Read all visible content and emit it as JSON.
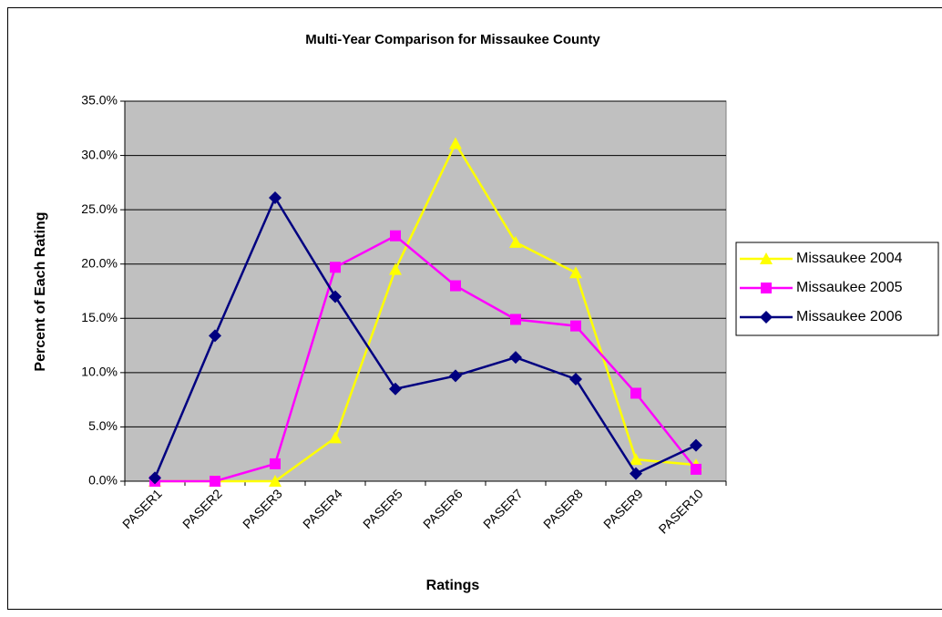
{
  "chart_data": {
    "type": "line",
    "title": "Multi-Year Comparison for Missaukee County",
    "x_label": "Ratings",
    "y_label": "Percent of Each Rating",
    "categories": [
      "PASER1",
      "PASER2",
      "PASER3",
      "PASER4",
      "PASER5",
      "PASER6",
      "PASER7",
      "PASER8",
      "PASER9",
      "PASER10"
    ],
    "series": [
      {
        "name": "Missaukee 2004",
        "color": "#ffff00",
        "marker": "triangle",
        "values": [
          0,
          0,
          0,
          4.0,
          19.5,
          31.1,
          22.0,
          19.2,
          2.0,
          1.5
        ]
      },
      {
        "name": "Missaukee 2005",
        "color": "#ff00ff",
        "marker": "square",
        "values": [
          0,
          0,
          1.6,
          19.7,
          22.6,
          18.0,
          14.9,
          14.3,
          8.1,
          1.1
        ]
      },
      {
        "name": "Missaukee 2006",
        "color": "#000080",
        "marker": "diamond",
        "values": [
          0.3,
          13.4,
          26.1,
          17.0,
          8.5,
          9.7,
          11.4,
          9.4,
          0.7,
          3.3
        ]
      }
    ],
    "ylim": [
      0,
      35
    ],
    "yticks": [
      {
        "value": 0,
        "label": "0.0%"
      },
      {
        "value": 5,
        "label": "5.0%"
      },
      {
        "value": 10,
        "label": "10.0%"
      },
      {
        "value": 15,
        "label": "15.0%"
      },
      {
        "value": 20,
        "label": "20.0%"
      },
      {
        "value": 25,
        "label": "25.0%"
      },
      {
        "value": 30,
        "label": "30.0%"
      },
      {
        "value": 35,
        "label": "35.0%"
      }
    ],
    "grid": true,
    "legend": "right",
    "plot_background": "#c0c0c0"
  }
}
